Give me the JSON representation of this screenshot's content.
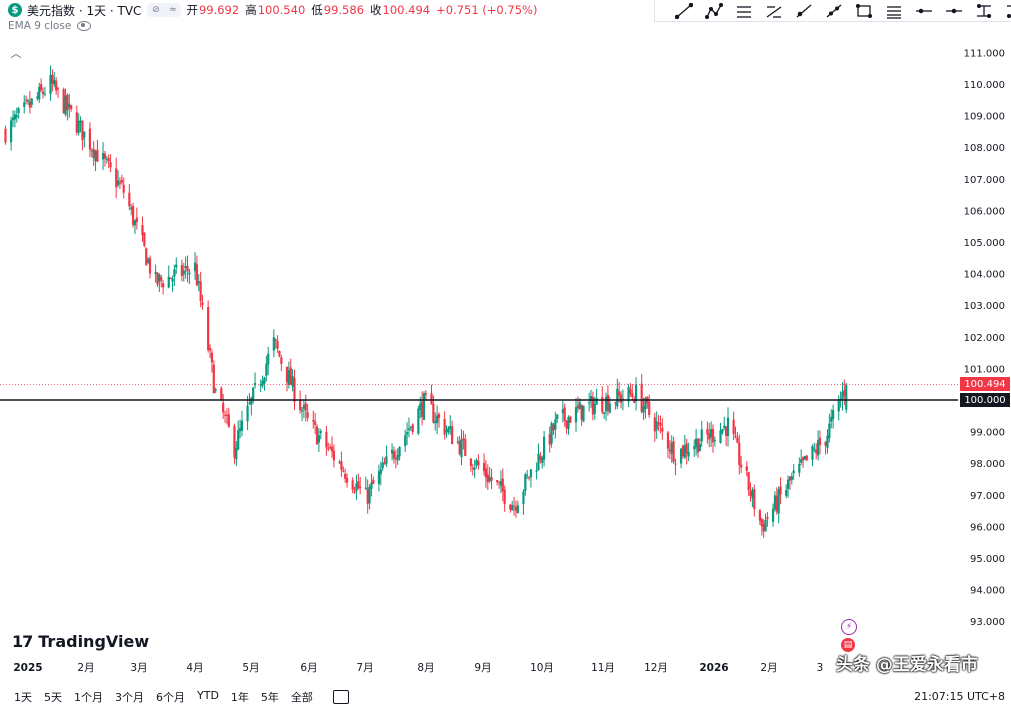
{
  "legend": {
    "badge": "$",
    "symbol_title": "美元指数 · 1天 · TVC",
    "open_label": "开",
    "open": "99.692",
    "high_label": "高",
    "high": "100.540",
    "low_label": "低",
    "low": "99.586",
    "close_label": "收",
    "close": "100.494",
    "change": "+0.751 (+0.75%)",
    "indicator": "EMA 9 close"
  },
  "toolbar": {
    "tools": [
      "trend-line-icon",
      "polyline-icon",
      "parallel-channel-icon",
      "fib-retracement-icon",
      "ray-icon",
      "extended-line-icon",
      "rectangle-icon",
      "horizontal-lines-icon",
      "horizontal-line-icon",
      "horizontal-ray-icon",
      "price-range-icon",
      "path-icon"
    ]
  },
  "price_tags": {
    "last": "100.494",
    "level": "100.000"
  },
  "branding": {
    "logo_text": "TradingView"
  },
  "time_ranges": [
    "1天",
    "5天",
    "1个月",
    "3个月",
    "6个月",
    "YTD",
    "1年",
    "5年",
    "全部"
  ],
  "clock": "21:07:15 UTC+8",
  "watermark": "头条 @王爱永看市",
  "colors": {
    "up": "#089981",
    "down": "#f23645",
    "level_line": "#131722",
    "last_line": "#f23645"
  },
  "chart_data": {
    "type": "candlestick",
    "y_axis": {
      "ticks": [
        93,
        94,
        95,
        96,
        97,
        98,
        99,
        100,
        101,
        102,
        103,
        104,
        105,
        106,
        107,
        108,
        109,
        110,
        111
      ],
      "tick_labels": [
        "93.000",
        "94.000",
        "95.000",
        "96.000",
        "97.000",
        "98.000",
        "99.000",
        "100.000",
        "101.000",
        "102.000",
        "103.000",
        "104.000",
        "105.000",
        "106.000",
        "107.000",
        "108.000",
        "109.000",
        "110.000",
        "111.000"
      ],
      "position": "right"
    },
    "x_axis": {
      "labels": [
        "2025",
        "2月",
        "3月",
        "4月",
        "5月",
        "6月",
        "7月",
        "8月",
        "9月",
        "10月",
        "11月",
        "12月",
        "2026",
        "2月",
        "3"
      ],
      "bold_labels": [
        "2025",
        "2026"
      ]
    },
    "horizontal_level": 100.0,
    "last_price": 100.494,
    "grid": false,
    "monthly_path": [
      {
        "date": "2024-12-20",
        "value": 108.5
      },
      {
        "date": "2025-01-13",
        "value": 110.0
      },
      {
        "date": "2025-01-31",
        "value": 108.4
      },
      {
        "date": "2025-02-21",
        "value": 106.6
      },
      {
        "date": "2025-03-10",
        "value": 103.7
      },
      {
        "date": "2025-03-31",
        "value": 104.2
      },
      {
        "date": "2025-04-11",
        "value": 100.2
      },
      {
        "date": "2025-04-21",
        "value": 98.5
      },
      {
        "date": "2025-05-12",
        "value": 101.8
      },
      {
        "date": "2025-05-30",
        "value": 99.3
      },
      {
        "date": "2025-06-30",
        "value": 96.9
      },
      {
        "date": "2025-07-31",
        "value": 99.9
      },
      {
        "date": "2025-08-29",
        "value": 97.9
      },
      {
        "date": "2025-09-17",
        "value": 96.7
      },
      {
        "date": "2025-10-10",
        "value": 99.3
      },
      {
        "date": "2025-10-31",
        "value": 99.9
      },
      {
        "date": "2025-11-21",
        "value": 100.2
      },
      {
        "date": "2025-12-12",
        "value": 98.3
      },
      {
        "date": "2026-01-09",
        "value": 99.2
      },
      {
        "date": "2026-01-27",
        "value": 96.0
      },
      {
        "date": "2026-02-11",
        "value": 97.4
      },
      {
        "date": "2026-03-02",
        "value": 98.8
      },
      {
        "date": "2026-03-13",
        "value": 100.494
      }
    ]
  }
}
